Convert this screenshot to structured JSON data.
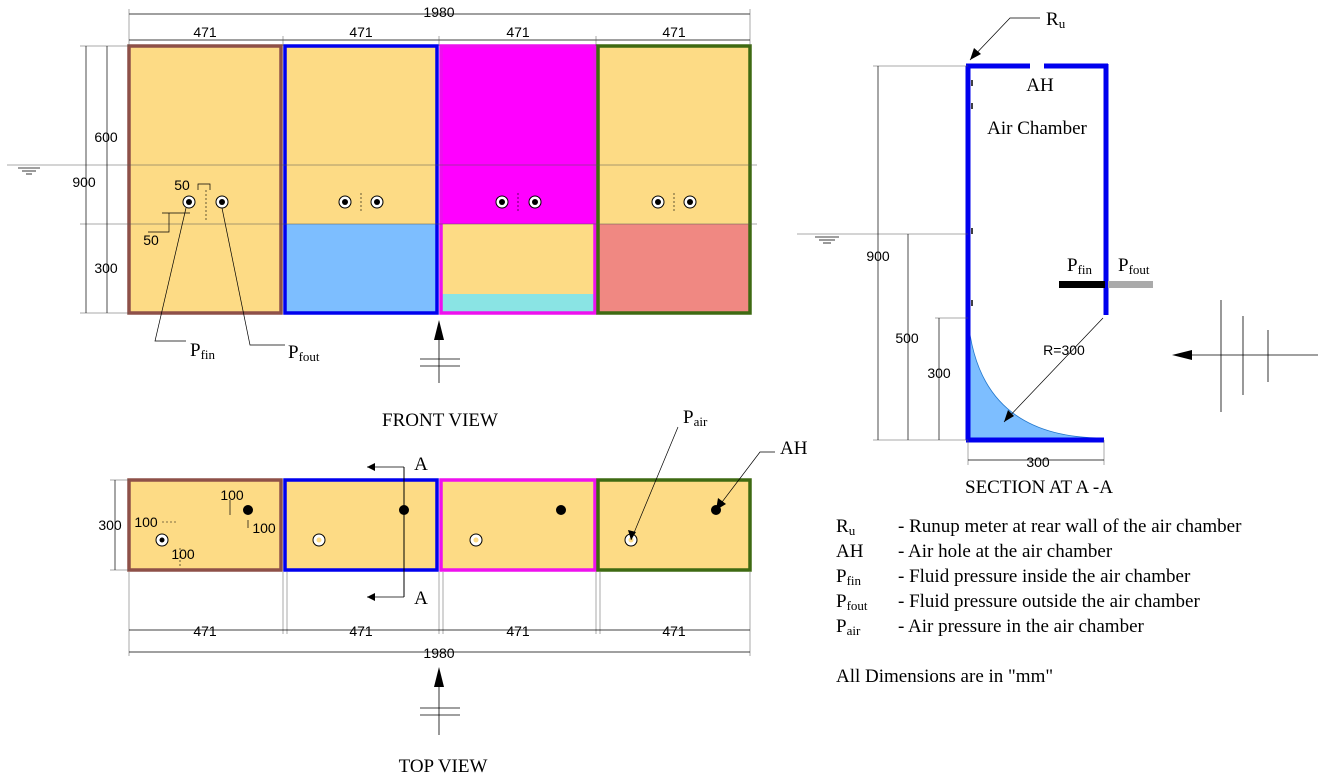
{
  "front_view": {
    "title": "FRONT VIEW",
    "overall_width": "1980",
    "module_width": "471",
    "dim_600": "600",
    "dim_900": "900",
    "dim_300": "300",
    "dim_50a": "50",
    "dim_50b": "50",
    "label_pfin_main": "P",
    "label_pfin_sub": "fin",
    "label_pfout_main": "P",
    "label_pfout_sub": "fout",
    "colors": {
      "sand": "#fddb85",
      "blue_fill": "#7dbeff",
      "magenta": "#ff00ff",
      "cyan_strip": "#8ae4e4",
      "salmon": "#f08882",
      "border_brown": "#8e5048",
      "border_blue": "#0000ee",
      "border_magenta": "#ee11ee",
      "border_green": "#3e6a12"
    }
  },
  "top_view": {
    "title": "TOP VIEW",
    "overall_width": "1980",
    "module_width": "471",
    "dim_300": "300",
    "dim_100a": "100",
    "dim_100b": "100",
    "dim_100c": "100",
    "dim_100d": "100",
    "section_a_top": "A",
    "section_a_bottom": "A",
    "label_pair_main": "P",
    "label_pair_sub": "air",
    "label_ah": "AH"
  },
  "section": {
    "title": "SECTION AT A -A",
    "label_ru_main": "R",
    "label_ru_sub": "u",
    "label_ah": "AH",
    "label_air_chamber": "Air Chamber",
    "dim_900": "900",
    "dim_500": "500",
    "dim_300_height": "300",
    "dim_300_width": "300",
    "radius": "R=300",
    "label_pfin_main": "P",
    "label_pfin_sub": "fin",
    "label_pfout_main": "P",
    "label_pfout_sub": "fout"
  },
  "legend": {
    "items": [
      {
        "sym": "R",
        "sub": "u",
        "desc": "- Runup meter at rear wall of the air chamber"
      },
      {
        "sym": "AH",
        "sub": "",
        "desc": "- Air hole at  the air chamber"
      },
      {
        "sym": "P",
        "sub": "fin",
        "desc": "- Fluid pressure inside the air chamber"
      },
      {
        "sym": "P",
        "sub": "fout",
        "desc": "- Fluid pressure  outside the air chamber"
      },
      {
        "sym": "P",
        "sub": "air",
        "desc": "- Air pressure  in the air chamber"
      }
    ],
    "note": "All Dimensions are in \"mm\""
  }
}
